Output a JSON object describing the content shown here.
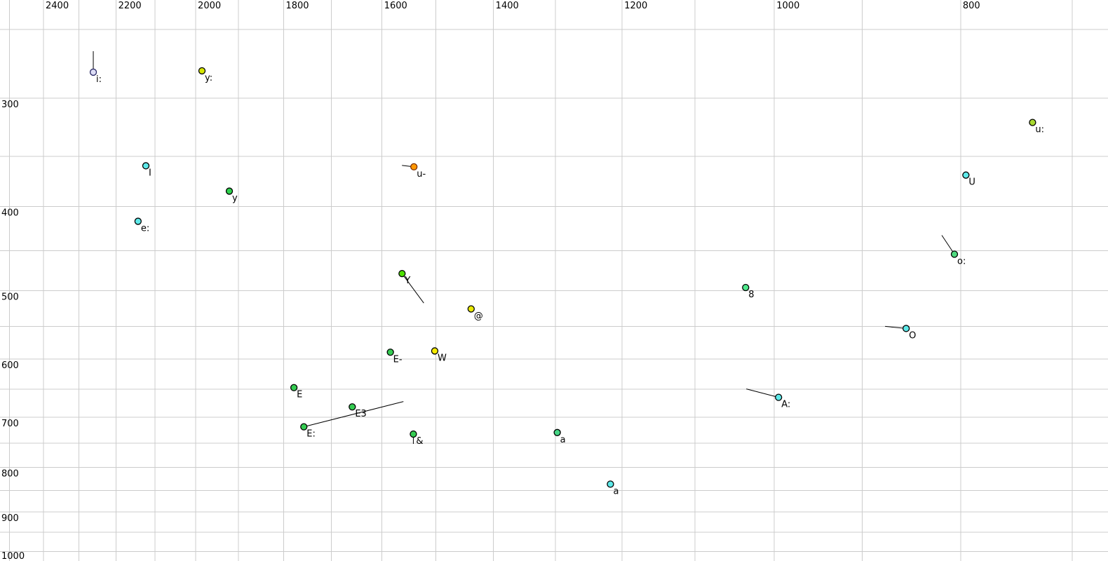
{
  "chart_data": {
    "type": "scatter",
    "title": "",
    "xlabel": "",
    "ylabel": "",
    "grid": true,
    "grid_color": "#cccccc",
    "background_color": "#ffffff",
    "x_axis": {
      "position": "top",
      "scale": "log",
      "reversed": true,
      "range": [
        2530,
        670
      ],
      "tick_labels": [
        2400,
        2200,
        2000,
        1800,
        1600,
        1400,
        1200,
        1000,
        800
      ],
      "grid_min": 700,
      "grid_max": 2500,
      "grid_step": 100
    },
    "y_axis": {
      "position": "left",
      "scale": "log",
      "inverted": true,
      "range": [
        231,
        1025
      ],
      "tick_labels": [
        300,
        400,
        500,
        600,
        700,
        800,
        900,
        1000
      ],
      "grid_min": 250,
      "grid_max": 1000,
      "grid_step": 50
    },
    "points": [
      {
        "label": "i:",
        "f2": 2261,
        "f1": 280,
        "fill": "#dcdcf5",
        "stroke": "#2a2a66",
        "tail": [
          0,
          -30
        ]
      },
      {
        "label": "y:",
        "f2": 1985,
        "f1": 279,
        "fill": "#d6e600",
        "stroke": "#000000"
      },
      {
        "label": "I",
        "f2": 2123,
        "f1": 359,
        "fill": "#5de9e9",
        "stroke": "#000000"
      },
      {
        "label": "y",
        "f2": 1921,
        "f1": 384,
        "fill": "#2ed24d",
        "stroke": "#000000"
      },
      {
        "label": "e:",
        "f2": 2143,
        "f1": 416,
        "fill": "#5de9e9",
        "stroke": "#000000"
      },
      {
        "label": "u-",
        "f2": 1540,
        "f1": 360,
        "fill": "#ff9800",
        "stroke": "#7a2d00",
        "tail": [
          -17,
          -2
        ]
      },
      {
        "label": "u:",
        "f2": 734,
        "f1": 320,
        "fill": "#a9d930",
        "stroke": "#000000"
      },
      {
        "label": "U",
        "f2": 795,
        "f1": 368,
        "fill": "#5de9e9",
        "stroke": "#000000"
      },
      {
        "label": "o:",
        "f2": 806,
        "f1": 454,
        "fill": "#4fd97f",
        "stroke": "#000000",
        "tail": [
          -18,
          -27
        ]
      },
      {
        "label": "8",
        "f2": 1035,
        "f1": 496,
        "fill": "#4fe98c",
        "stroke": "#000000"
      },
      {
        "label": "Y",
        "f2": 1562,
        "f1": 478,
        "fill": "#4de000",
        "stroke": "#000000",
        "tail": [
          31,
          42
        ]
      },
      {
        "label": "@",
        "f2": 1438,
        "f1": 525,
        "fill": "#e9e900",
        "stroke": "#000000"
      },
      {
        "label": "O",
        "f2": 854,
        "f1": 553,
        "fill": "#5de9e9",
        "stroke": "#000000",
        "tail": [
          -30,
          -3
        ]
      },
      {
        "label": "E-",
        "f2": 1584,
        "f1": 589,
        "fill": "#35cc52",
        "stroke": "#000000"
      },
      {
        "label": "W",
        "f2": 1502,
        "f1": 587,
        "fill": "#f5ea00",
        "stroke": "#000000"
      },
      {
        "label": "E",
        "f2": 1778,
        "f1": 647,
        "fill": "#35cc52",
        "stroke": "#000000"
      },
      {
        "label": "A:",
        "f2": 995,
        "f1": 664,
        "fill": "#5de9e9",
        "stroke": "#000000",
        "tail": [
          -46,
          -12
        ]
      },
      {
        "label": "E3",
        "f2": 1658,
        "f1": 681,
        "fill": "#35cc52",
        "stroke": "#000000"
      },
      {
        "label": "E:",
        "f2": 1757,
        "f1": 718,
        "fill": "#35cc52",
        "stroke": "#000000",
        "tail": [
          142,
          -36
        ]
      },
      {
        "label": "&",
        "f2": 1541,
        "f1": 732,
        "fill": "#35cc52",
        "stroke": "#000000",
        "tail": [
          0,
          14
        ]
      },
      {
        "label": "a",
        "f2": 1297,
        "f1": 729,
        "fill": "#45d585",
        "stroke": "#000000",
        "label_color": "#8c8c8c"
      },
      {
        "label": "a",
        "f2": 1217,
        "f1": 836,
        "fill": "#5de9e9",
        "stroke": "#000000"
      }
    ]
  }
}
